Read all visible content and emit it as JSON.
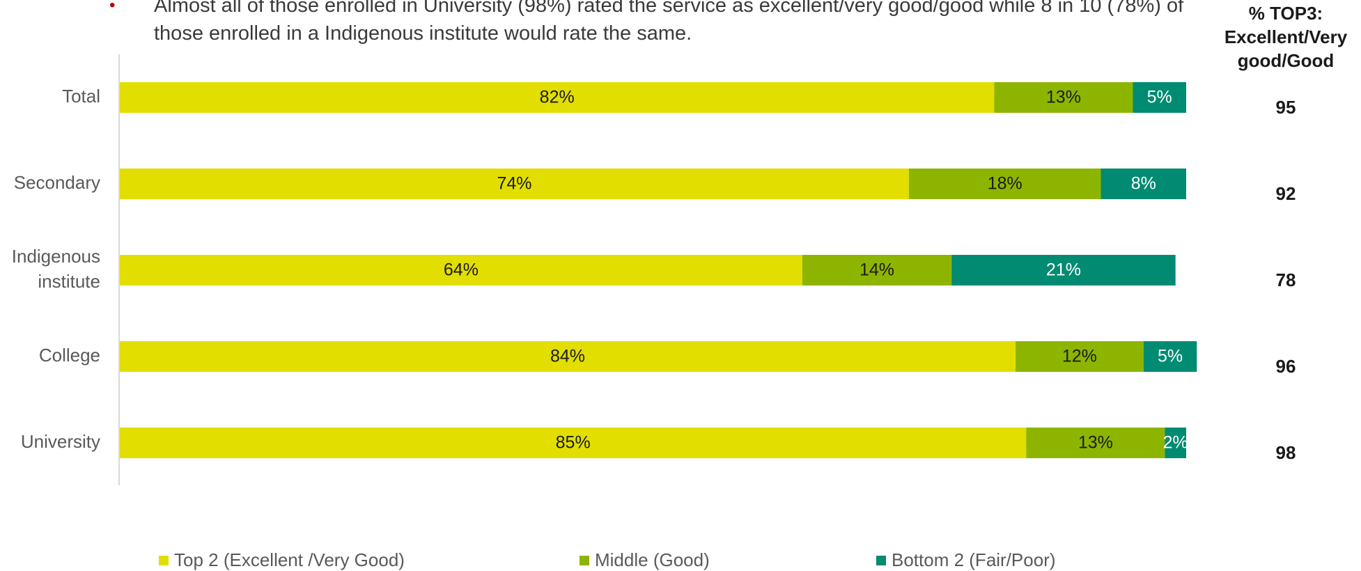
{
  "bullet": {
    "text": "Almost all of those enrolled in University (98%) rated the service as excellent/very good/good while 8 in 10 (78%) of those enrolled in a Indigenous institute would rate the same."
  },
  "top3_header": "% TOP3: Excellent/Very good/Good",
  "colors": {
    "top2": "#e2de00",
    "middle": "#8db500",
    "bottom2": "#008b72"
  },
  "chart_data": {
    "type": "bar",
    "orientation": "horizontal",
    "stacked": true,
    "categories": [
      "Total",
      "Secondary",
      "Indigenous institute",
      "College",
      "University"
    ],
    "series": [
      {
        "name": "Top 2 (Excellent /Very Good)",
        "values": [
          82,
          74,
          64,
          84,
          85
        ],
        "labels": [
          "82%",
          "74%",
          "64%",
          "84%",
          "85%"
        ]
      },
      {
        "name": "Middle (Good)",
        "values": [
          13,
          18,
          14,
          12,
          13
        ],
        "labels": [
          "13%",
          "18%",
          "14%",
          "12%",
          "13%"
        ]
      },
      {
        "name": "Bottom 2 (Fair/Poor)",
        "values": [
          5,
          8,
          21,
          5,
          2
        ],
        "labels": [
          "5%",
          "8%",
          "21%",
          "5%",
          "2%"
        ]
      }
    ],
    "top3_values": [
      95,
      92,
      78,
      96,
      98
    ],
    "xlim": [
      0,
      100
    ],
    "legend_position": "bottom",
    "grid": false
  }
}
